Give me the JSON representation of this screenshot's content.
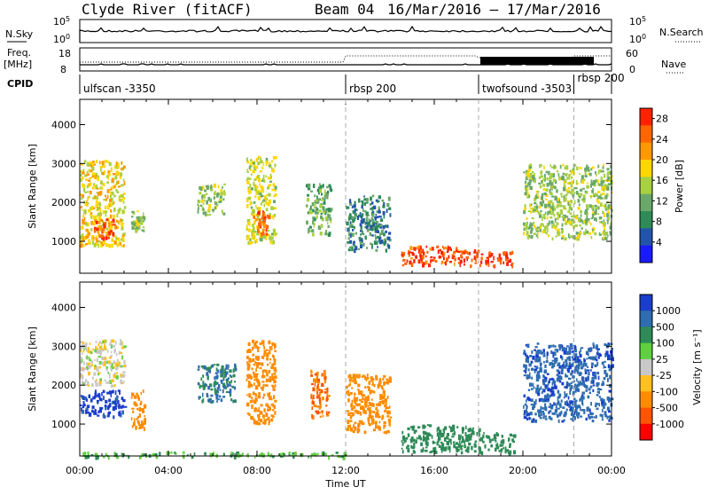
{
  "header": {
    "station": "Clyde River (fitACF)",
    "beam": "Beam 04",
    "date_range": "16/Mar/2016 – 17/Mar/2016"
  },
  "summary_panels": {
    "nsky_label": "N.Sky",
    "nsearch_label": "N.Search",
    "freq_label": "Freq.",
    "freq_unit": "[MHz]",
    "nave_label": "Nave",
    "cpid_label": "CPID",
    "nsky_ticks": [
      "10^5",
      "10^0"
    ],
    "nsearch_ticks": [
      "10^5",
      "10^0"
    ],
    "freq_ticks": [
      "18",
      "8"
    ],
    "nave_ticks": [
      "60",
      "0"
    ],
    "cpid_modes": [
      {
        "label": "ulfscan -3350",
        "start_h": 0
      },
      {
        "label": "rbsp 200",
        "start_h": 12
      },
      {
        "label": "twofsound -3503",
        "start_h": 18
      },
      {
        "label": "rbsp 200",
        "start_h": 22.3
      }
    ]
  },
  "colors": {
    "power_scale": [
      "#1a1aff",
      "#2255aa",
      "#2e8b57",
      "#6aa86a",
      "#a8d040",
      "#ffd700",
      "#ff9900",
      "#ff6600",
      "#ff2200"
    ],
    "velocity_scale": [
      "#1a3dcc",
      "#2e6db0",
      "#2e8b57",
      "#5fd03f",
      "#c8c8c8",
      "#ffc020",
      "#ff8c00",
      "#ff5500",
      "#ff0000"
    ],
    "ground_scatter": "#9b9b9b"
  },
  "chart_data": [
    {
      "type": "heatmap",
      "title": "",
      "xlabel": "",
      "ylabel": "Slant Range [km]",
      "xlim": [
        0,
        24
      ],
      "ylim": [
        180,
        4650
      ],
      "x_ticks": [
        "00:00",
        "04:00",
        "08:00",
        "12:00",
        "16:00",
        "20:00",
        "00:00"
      ],
      "y_ticks": [
        1000,
        2000,
        3000,
        4000
      ],
      "colorbar": {
        "label": "Power [dB]",
        "ticks": [
          4,
          8,
          12,
          16,
          20,
          24,
          28
        ],
        "range": [
          0,
          30
        ]
      },
      "regions": [
        {
          "x": [
            0.0,
            2.0
          ],
          "y": [
            900,
            3100
          ],
          "value": 18
        },
        {
          "x": [
            0.6,
            1.6
          ],
          "y": [
            1100,
            1600
          ],
          "value": 26
        },
        {
          "x": [
            2.3,
            2.9
          ],
          "y": [
            1300,
            1800
          ],
          "value": 14
        },
        {
          "x": [
            5.3,
            6.5
          ],
          "y": [
            1700,
            2500
          ],
          "value": 14
        },
        {
          "x": [
            7.5,
            8.8
          ],
          "y": [
            1000,
            3200
          ],
          "value": 16
        },
        {
          "x": [
            7.8,
            8.5
          ],
          "y": [
            1200,
            1800
          ],
          "value": 25
        },
        {
          "x": [
            10.2,
            11.3
          ],
          "y": [
            1200,
            2500
          ],
          "value": 12
        },
        {
          "x": [
            12.0,
            14.0
          ],
          "y": [
            800,
            2200
          ],
          "value": 8
        },
        {
          "x": [
            14.5,
            17.0
          ],
          "y": [
            400,
            900
          ],
          "value": 26
        },
        {
          "x": [
            17.0,
            19.5
          ],
          "y": [
            400,
            800
          ],
          "value": 28
        },
        {
          "x": [
            20.0,
            24.0
          ],
          "y": [
            1100,
            3000
          ],
          "value": 14
        }
      ]
    },
    {
      "type": "heatmap",
      "title": "",
      "xlabel": "Time UT",
      "ylabel": "Slant Range [km]",
      "xlim": [
        0,
        24
      ],
      "ylim": [
        180,
        4650
      ],
      "x_ticks": [
        "00:00",
        "04:00",
        "08:00",
        "12:00",
        "16:00",
        "20:00",
        "00:00"
      ],
      "y_ticks": [
        1000,
        2000,
        3000,
        4000
      ],
      "colorbar": {
        "label": "Velocity [m s⁻¹]",
        "ticks": [
          1000,
          500,
          100,
          25,
          -25,
          -100,
          -500,
          -1000
        ]
      },
      "regions": [
        {
          "x": [
            0.0,
            2.0
          ],
          "y": [
            1200,
            1900
          ],
          "value": 900
        },
        {
          "x": [
            0.0,
            2.0
          ],
          "y": [
            2000,
            3200
          ],
          "value": 0
        },
        {
          "x": [
            2.3,
            2.9
          ],
          "y": [
            900,
            1900
          ],
          "value": -200
        },
        {
          "x": [
            5.3,
            7.0
          ],
          "y": [
            1600,
            2600
          ],
          "value": 300
        },
        {
          "x": [
            7.5,
            8.8
          ],
          "y": [
            1000,
            3200
          ],
          "value": -150
        },
        {
          "x": [
            10.4,
            11.2
          ],
          "y": [
            1200,
            2400
          ],
          "value": -300
        },
        {
          "x": [
            12.0,
            14.0
          ],
          "y": [
            800,
            2300
          ],
          "value": -200
        },
        {
          "x": [
            14.5,
            18.0
          ],
          "y": [
            300,
            1000
          ],
          "value": 200
        },
        {
          "x": [
            18.0,
            19.6
          ],
          "y": [
            300,
            800
          ],
          "value": 150
        },
        {
          "x": [
            20.0,
            24.0
          ],
          "y": [
            1100,
            3100
          ],
          "value": 600
        },
        {
          "x": [
            0.0,
            12.0
          ],
          "y": [
            180,
            300
          ],
          "value": 50
        }
      ]
    }
  ]
}
